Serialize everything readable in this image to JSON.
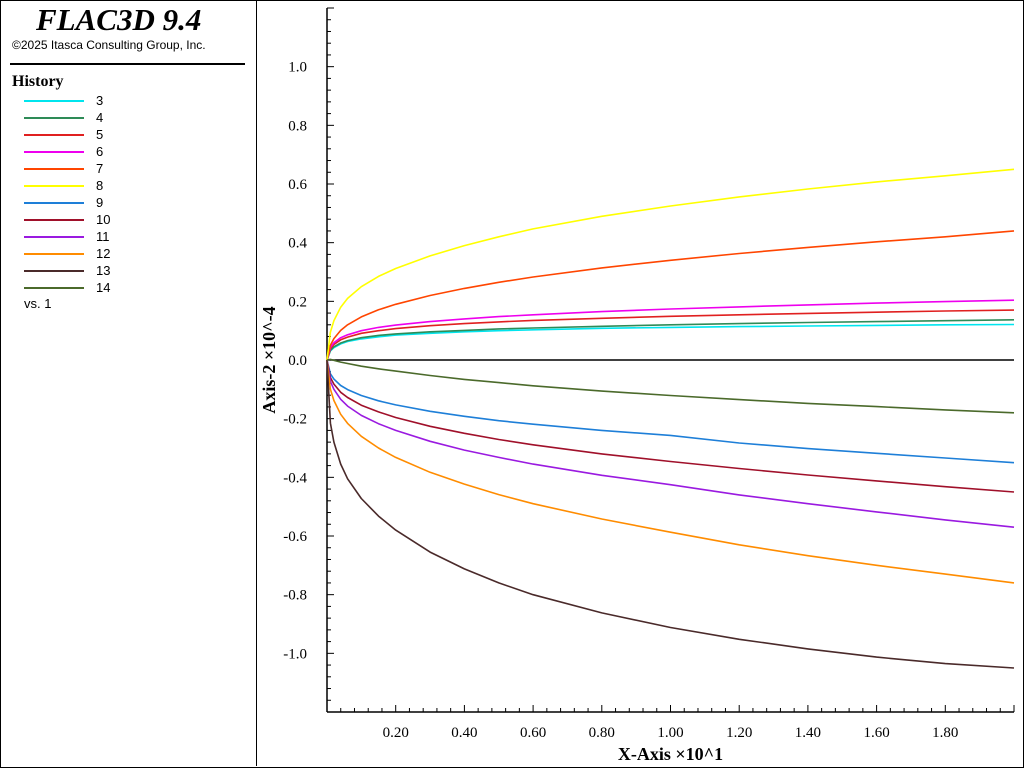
{
  "header": {
    "app_title": "FLAC3D 9.4",
    "copyright": "©2025 Itasca Consulting Group, Inc."
  },
  "legend": {
    "heading": "History",
    "vs_label": "vs. 1"
  },
  "chart_data": {
    "type": "line",
    "xlabel": "X-Axis ×10^1",
    "ylabel": "Axis-2 ×10^-4",
    "xlim": [
      0,
      2.0
    ],
    "ylim": [
      -1.2,
      1.2
    ],
    "x_ticks": [
      0.2,
      0.4,
      0.6,
      0.8,
      1.0,
      1.2,
      1.4,
      1.6,
      1.8
    ],
    "x_tick_labels": [
      "0.20",
      "0.40",
      "0.60",
      "0.80",
      "1.00",
      "1.20",
      "1.40",
      "1.60",
      "1.80"
    ],
    "y_ticks": [
      1.0,
      0.8,
      0.6,
      0.4,
      0.2,
      0.0,
      -0.2,
      -0.4,
      -0.6,
      -0.8,
      -1.0
    ],
    "y_tick_labels": [
      "1.0",
      "0.8",
      "0.6",
      "0.4",
      "0.2",
      "0.0",
      "-0.2",
      "-0.4",
      "-0.6",
      "-0.8",
      "-1.0"
    ],
    "zero_line": true,
    "grid": false,
    "legend_position": "left-panel",
    "x": [
      0,
      0.01,
      0.02,
      0.04,
      0.06,
      0.1,
      0.15,
      0.2,
      0.3,
      0.4,
      0.5,
      0.6,
      0.8,
      1.0,
      1.2,
      1.4,
      1.6,
      1.8,
      2.0
    ],
    "series": [
      {
        "name": "3",
        "color": "#00E5EE",
        "values": [
          0,
          0.031,
          0.042,
          0.055,
          0.063,
          0.072,
          0.079,
          0.085,
          0.091,
          0.096,
          0.1,
          0.103,
          0.108,
          0.111,
          0.114,
          0.116,
          0.118,
          0.12,
          0.121
        ]
      },
      {
        "name": "4",
        "color": "#2E8B57",
        "values": [
          0,
          0.033,
          0.045,
          0.058,
          0.066,
          0.076,
          0.084,
          0.089,
          0.096,
          0.101,
          0.106,
          0.109,
          0.115,
          0.12,
          0.124,
          0.128,
          0.131,
          0.134,
          0.137
        ]
      },
      {
        "name": "5",
        "color": "#E02020",
        "values": [
          0,
          0.039,
          0.053,
          0.069,
          0.078,
          0.091,
          0.1,
          0.107,
          0.117,
          0.124,
          0.13,
          0.135,
          0.142,
          0.149,
          0.154,
          0.159,
          0.163,
          0.167,
          0.17
        ]
      },
      {
        "name": "6",
        "color": "#EE00EE",
        "values": [
          0,
          0.043,
          0.059,
          0.076,
          0.086,
          0.1,
          0.111,
          0.119,
          0.131,
          0.14,
          0.148,
          0.154,
          0.165,
          0.174,
          0.181,
          0.188,
          0.194,
          0.199,
          0.204
        ]
      },
      {
        "name": "7",
        "color": "#FF4500",
        "values": [
          0,
          0.05,
          0.073,
          0.101,
          0.12,
          0.147,
          0.171,
          0.19,
          0.22,
          0.244,
          0.265,
          0.283,
          0.314,
          0.34,
          0.363,
          0.384,
          0.403,
          0.42,
          0.44
        ]
      },
      {
        "name": "8",
        "color": "#FFFF00",
        "values": [
          0,
          0.095,
          0.134,
          0.18,
          0.21,
          0.25,
          0.285,
          0.312,
          0.355,
          0.39,
          0.42,
          0.447,
          0.49,
          0.525,
          0.556,
          0.583,
          0.607,
          0.628,
          0.65
        ]
      },
      {
        "name": "9",
        "color": "#1E7FD8",
        "values": [
          0,
          -0.047,
          -0.065,
          -0.087,
          -0.101,
          -0.121,
          -0.139,
          -0.153,
          -0.175,
          -0.192,
          -0.207,
          -0.219,
          -0.24,
          -0.257,
          -0.283,
          -0.302,
          -0.318,
          -0.334,
          -0.35
        ]
      },
      {
        "name": "10",
        "color": "#A0102A",
        "values": [
          0,
          -0.06,
          -0.082,
          -0.11,
          -0.128,
          -0.154,
          -0.177,
          -0.196,
          -0.226,
          -0.25,
          -0.271,
          -0.289,
          -0.32,
          -0.346,
          -0.37,
          -0.392,
          -0.412,
          -0.432,
          -0.45
        ]
      },
      {
        "name": "11",
        "color": "#9A1AE0",
        "values": [
          0,
          -0.073,
          -0.1,
          -0.134,
          -0.157,
          -0.189,
          -0.217,
          -0.24,
          -0.277,
          -0.307,
          -0.332,
          -0.355,
          -0.393,
          -0.425,
          -0.46,
          -0.49,
          -0.518,
          -0.545,
          -0.57
        ]
      },
      {
        "name": "12",
        "color": "#FF8C00",
        "values": [
          0,
          -0.1,
          -0.138,
          -0.185,
          -0.216,
          -0.26,
          -0.3,
          -0.332,
          -0.383,
          -0.423,
          -0.459,
          -0.49,
          -0.542,
          -0.587,
          -0.63,
          -0.667,
          -0.7,
          -0.73,
          -0.76
        ]
      },
      {
        "name": "13",
        "color": "#4A2A2A",
        "values": [
          0,
          -0.215,
          -0.28,
          -0.355,
          -0.405,
          -0.472,
          -0.532,
          -0.58,
          -0.655,
          -0.712,
          -0.76,
          -0.8,
          -0.862,
          -0.912,
          -0.952,
          -0.985,
          -1.013,
          -1.035,
          -1.05
        ]
      },
      {
        "name": "14",
        "color": "#4B6A2B",
        "values": [
          0,
          0.002,
          -0.001,
          -0.007,
          -0.012,
          -0.021,
          -0.03,
          -0.038,
          -0.053,
          -0.066,
          -0.077,
          -0.088,
          -0.106,
          -0.121,
          -0.135,
          -0.148,
          -0.159,
          -0.17,
          -0.18
        ]
      }
    ]
  }
}
